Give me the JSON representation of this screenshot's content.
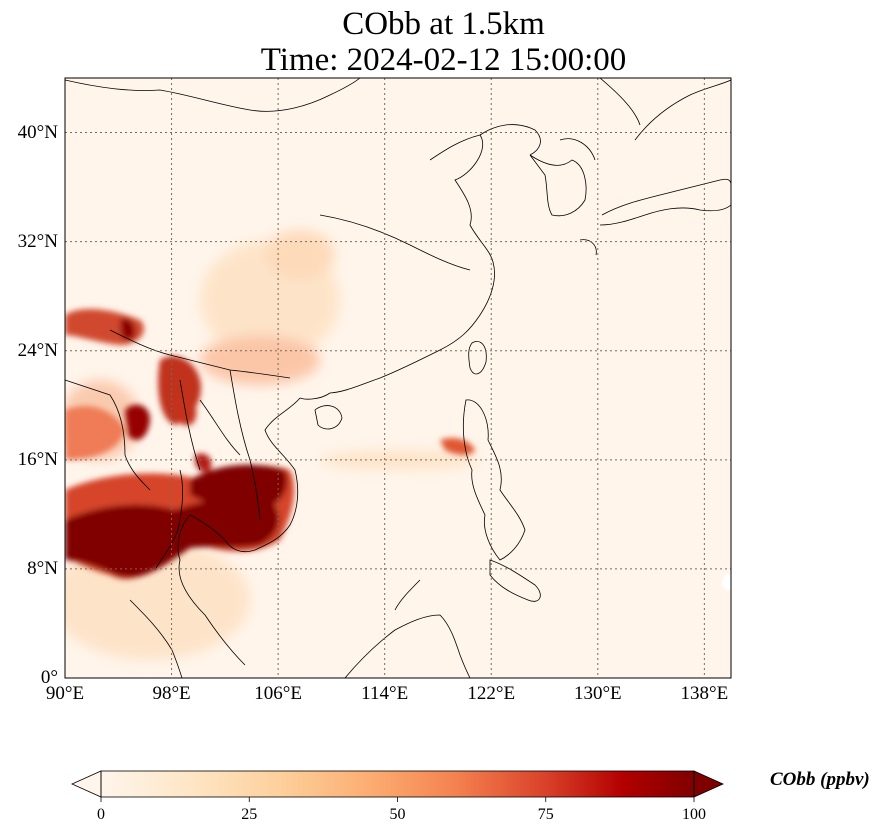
{
  "title": {
    "line1": "CObb at 1.5km",
    "line2": "Time: 2024-02-12 15:00:00"
  },
  "map": {
    "lon_range": [
      90,
      140
    ],
    "lat_range": [
      0,
      44
    ],
    "lat_ticks": [
      {
        "value": 0,
        "label": "0°"
      },
      {
        "value": 8,
        "label": "8°N"
      },
      {
        "value": 16,
        "label": "16°N"
      },
      {
        "value": 24,
        "label": "24°N"
      },
      {
        "value": 32,
        "label": "32°N"
      },
      {
        "value": 40,
        "label": "40°N"
      }
    ],
    "lon_ticks": [
      {
        "value": 90,
        "label": "90°E"
      },
      {
        "value": 98,
        "label": "98°E"
      },
      {
        "value": 106,
        "label": "106°E"
      },
      {
        "value": 114,
        "label": "114°E"
      },
      {
        "value": 122,
        "label": "122°E"
      },
      {
        "value": 130,
        "label": "130°E"
      },
      {
        "value": 138,
        "label": "138°E"
      }
    ],
    "gridlines": "dotted",
    "background_color": "#fff5eb"
  },
  "colorbar": {
    "label": "CObb (ppbv)",
    "range": [
      0,
      100
    ],
    "extend": "both",
    "colormap": "OrRd",
    "ticks": [
      {
        "value": 0,
        "label": "0"
      },
      {
        "value": 25,
        "label": "25"
      },
      {
        "value": 50,
        "label": "50"
      },
      {
        "value": 75,
        "label": "75"
      },
      {
        "value": 100,
        "label": "100"
      }
    ]
  }
}
